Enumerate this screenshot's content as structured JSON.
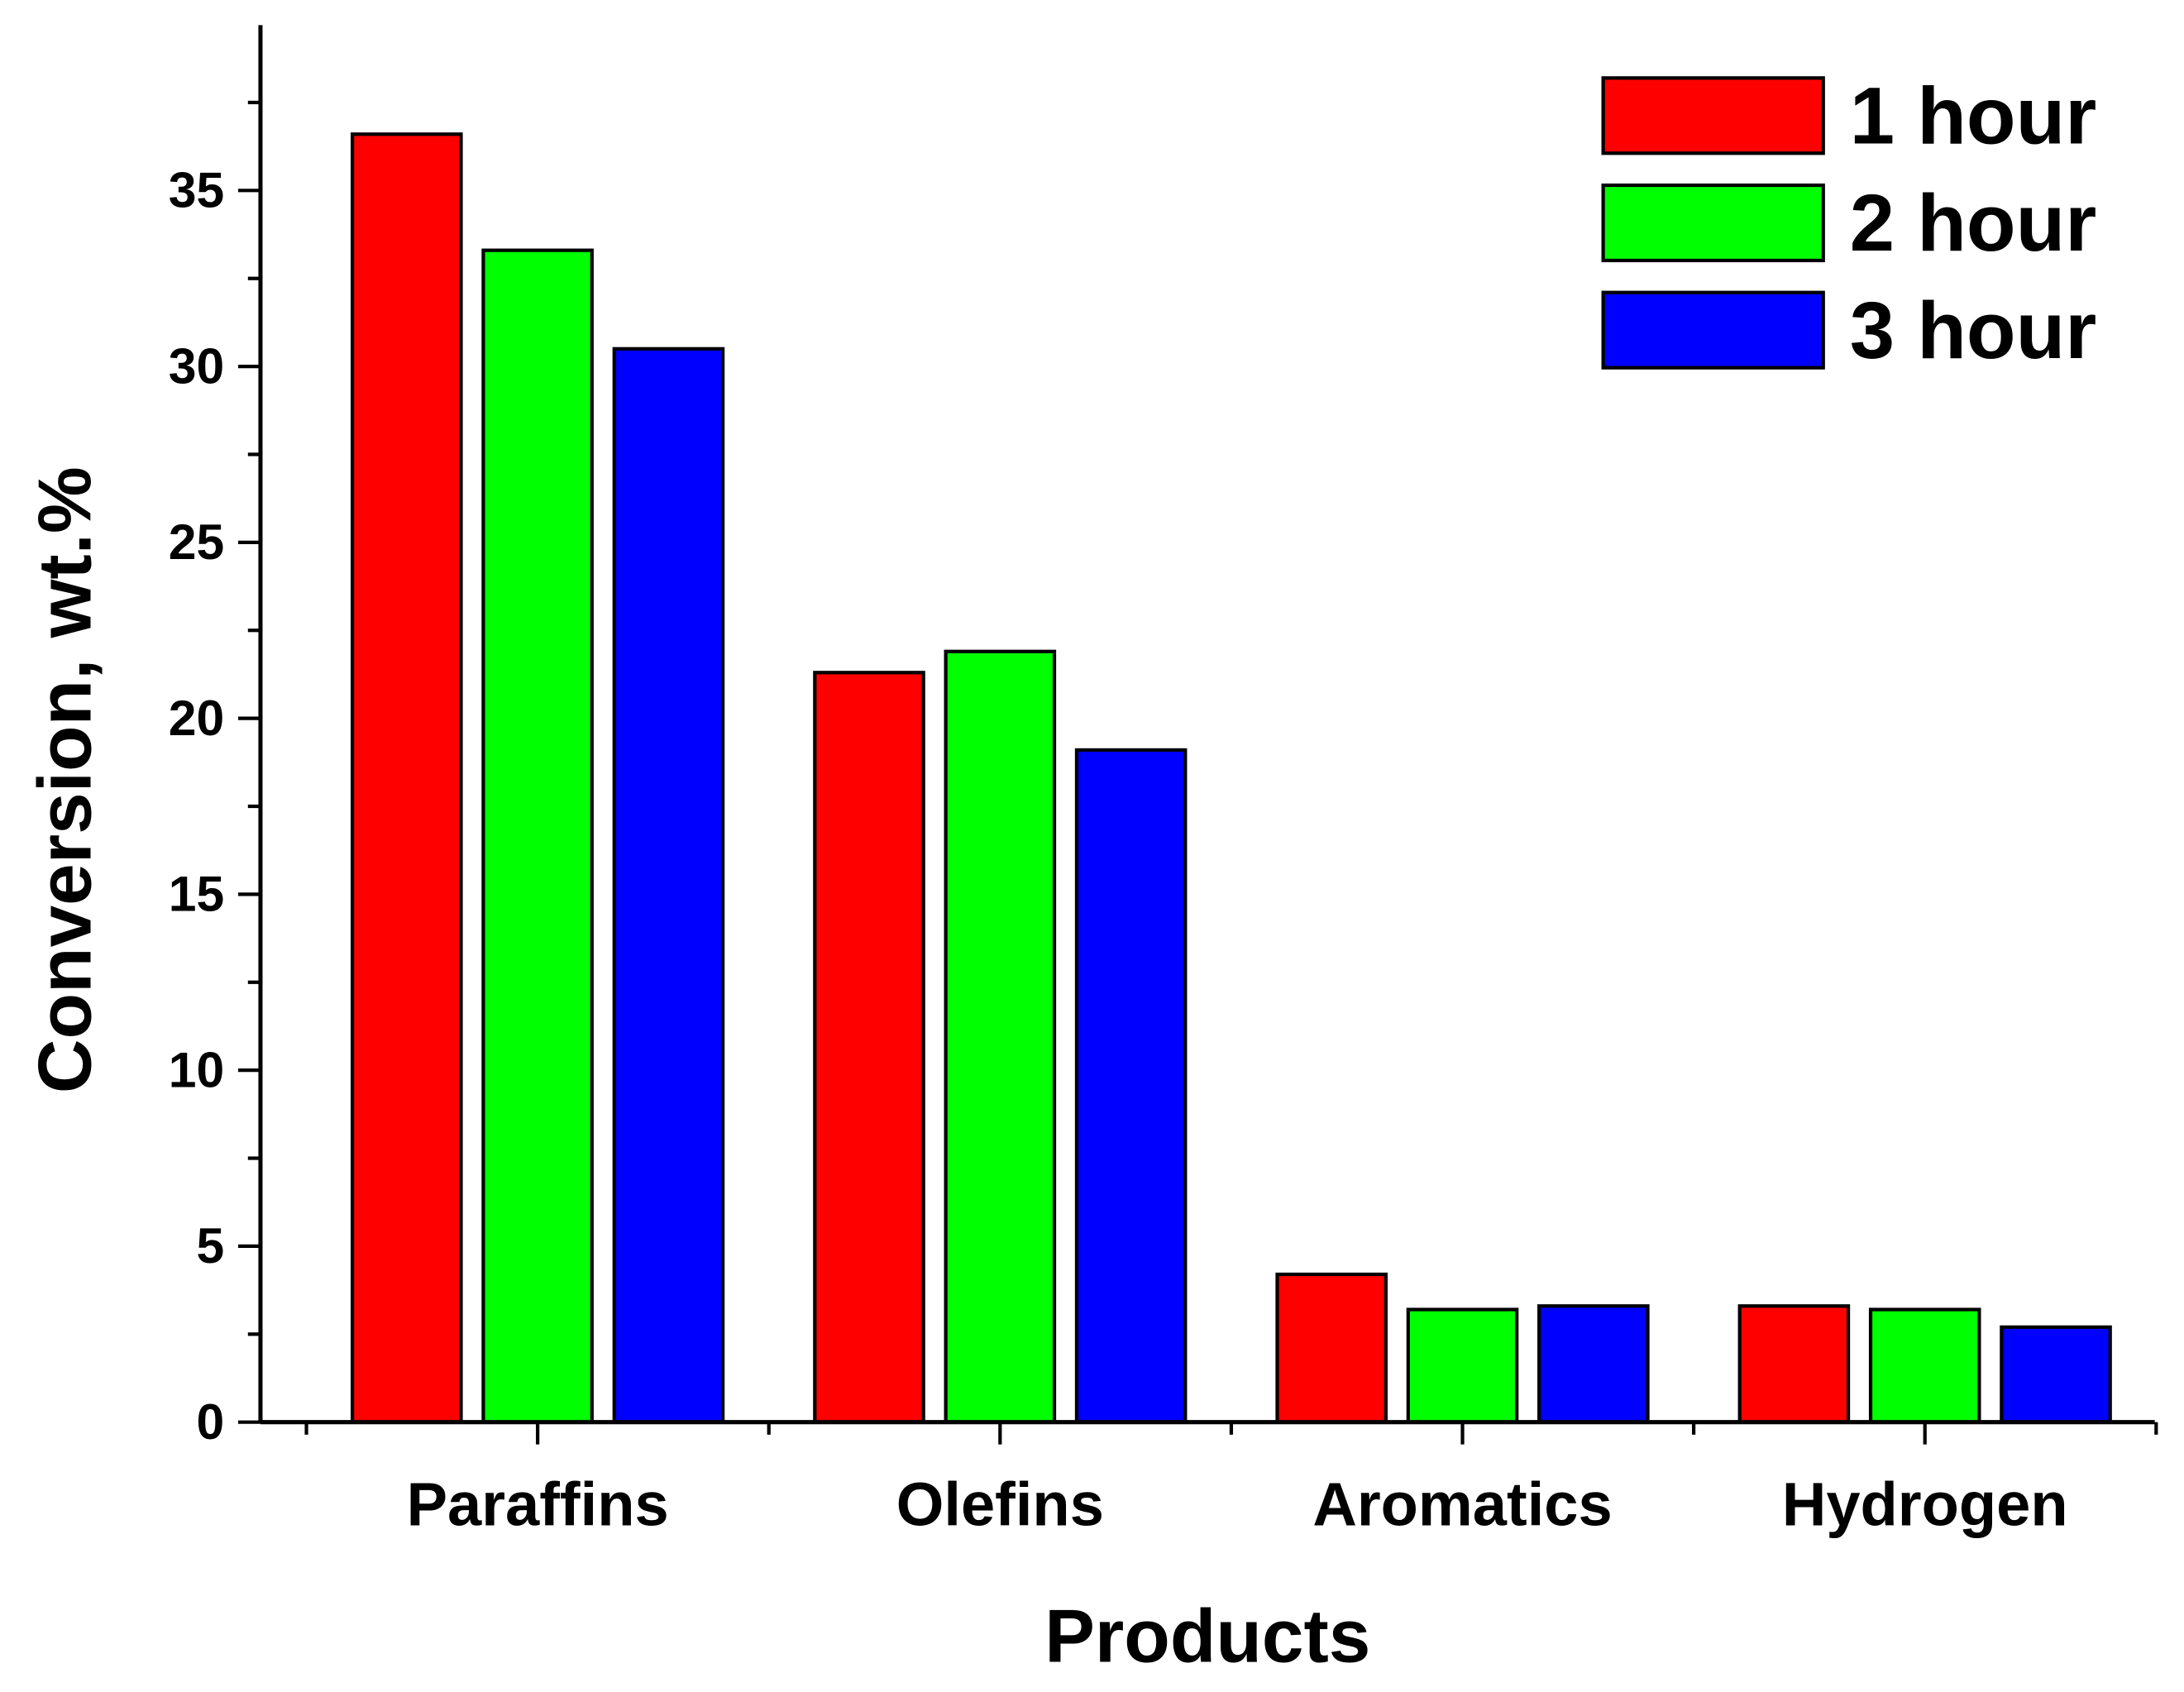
{
  "chart_data": {
    "type": "bar",
    "x_label": "Products",
    "y_label": "Conversion, wt.%",
    "categories": [
      "Paraffins",
      "Olefins",
      "Aromatics",
      "Hydrogen"
    ],
    "series": [
      {
        "name": "1 hour",
        "color": "#ff0000",
        "values": [
          36.6,
          21.3,
          4.2,
          3.3
        ]
      },
      {
        "name": "2 hour",
        "color": "#00ff00",
        "values": [
          33.3,
          21.9,
          3.2,
          3.2
        ]
      },
      {
        "name": "3 hour",
        "color": "#0000ff",
        "values": [
          30.5,
          19.1,
          3.3,
          2.7
        ]
      }
    ],
    "ylim": [
      0,
      39.7
    ],
    "yticks": [
      0,
      5,
      10,
      15,
      20,
      25,
      30,
      35
    ],
    "legend": "upper right",
    "grid": false
  }
}
